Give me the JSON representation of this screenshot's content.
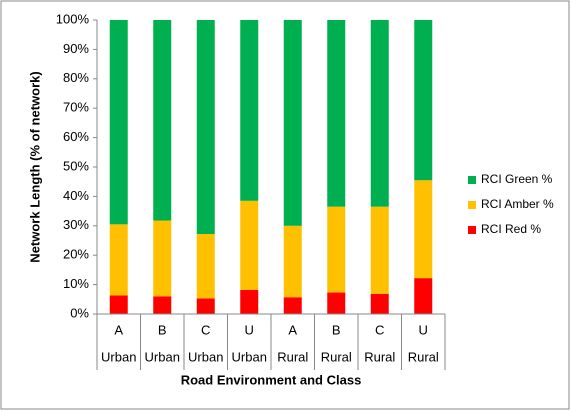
{
  "chart_data": {
    "type": "stacked_bar",
    "x_label": "Road Environment and Class",
    "y_label": "Network Length (% of network)",
    "categories": [
      "A",
      "B",
      "C",
      "U",
      "A",
      "B",
      "C",
      "U"
    ],
    "category_groups": [
      "Urban",
      "Urban",
      "Urban",
      "Urban",
      "Rural",
      "Rural",
      "Rural",
      "Rural"
    ],
    "series": [
      {
        "name": "RCI Red %",
        "color": "#ff0000",
        "values": [
          6.3,
          6.0,
          5.3,
          8.2,
          5.7,
          7.3,
          6.8,
          12.2
        ]
      },
      {
        "name": "RCI Amber %",
        "color": "#ffc000",
        "values": [
          24.2,
          25.8,
          21.9,
          30.3,
          24.3,
          29.2,
          29.7,
          33.3
        ]
      },
      {
        "name": "RCI Green %",
        "color": "#00b050",
        "values": [
          69.5,
          68.2,
          72.8,
          61.5,
          70.0,
          63.5,
          63.5,
          54.5
        ]
      }
    ],
    "ylim": [
      0,
      100
    ],
    "yticks": [
      {
        "value": 0,
        "label": "0%"
      },
      {
        "value": 10,
        "label": "10%"
      },
      {
        "value": 20,
        "label": "20%"
      },
      {
        "value": 30,
        "label": "30%"
      },
      {
        "value": 40,
        "label": "40%"
      },
      {
        "value": 50,
        "label": "50%"
      },
      {
        "value": 60,
        "label": "60%"
      },
      {
        "value": 70,
        "label": "70%"
      },
      {
        "value": 80,
        "label": "80%"
      },
      {
        "value": 90,
        "label": "90%"
      },
      {
        "value": 100,
        "label": "100%"
      }
    ],
    "legend": "right"
  }
}
